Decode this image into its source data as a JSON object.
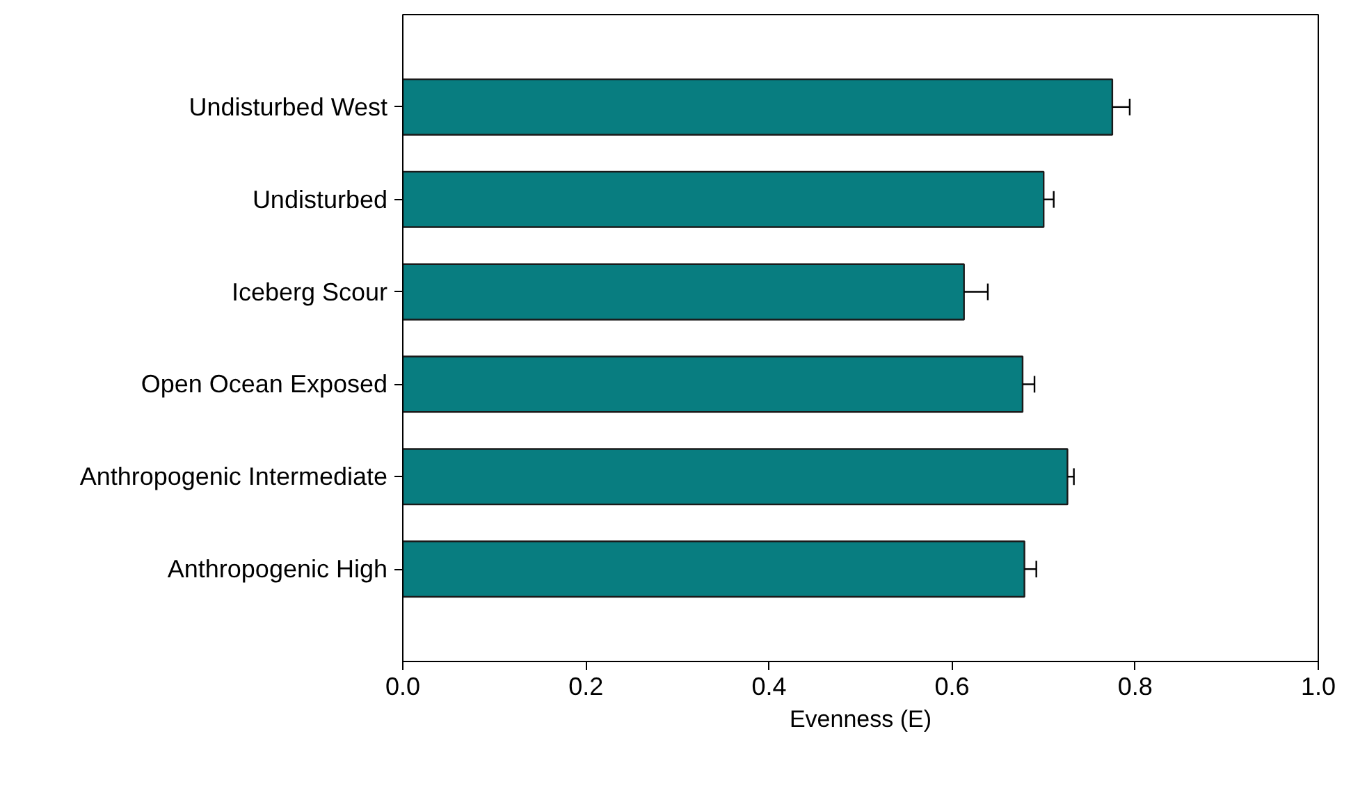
{
  "chart_data": {
    "type": "bar",
    "orientation": "horizontal",
    "xlabel": "Evenness (E)",
    "categories": [
      "Undisturbed West",
      "Undisturbed",
      "Iceberg Scour",
      "Open Ocean Exposed",
      "Anthropogenic Intermediate",
      "Anthropogenic High"
    ],
    "values": [
      0.775,
      0.7,
      0.613,
      0.677,
      0.726,
      0.679
    ],
    "errors": [
      [
        0.775,
        0.794
      ],
      [
        0.7,
        0.711
      ],
      [
        0.613,
        0.639
      ],
      [
        0.677,
        0.69
      ],
      [
        0.726,
        0.733
      ],
      [
        0.679,
        0.692
      ]
    ],
    "color": "#087d80",
    "xlim": [
      0,
      1
    ],
    "xticks": [
      {
        "value": 0,
        "label": "0.0"
      },
      0.2,
      0.4,
      0.6,
      0.8,
      {
        "value": 1,
        "label": "1.0"
      }
    ],
    "grid": false
  }
}
